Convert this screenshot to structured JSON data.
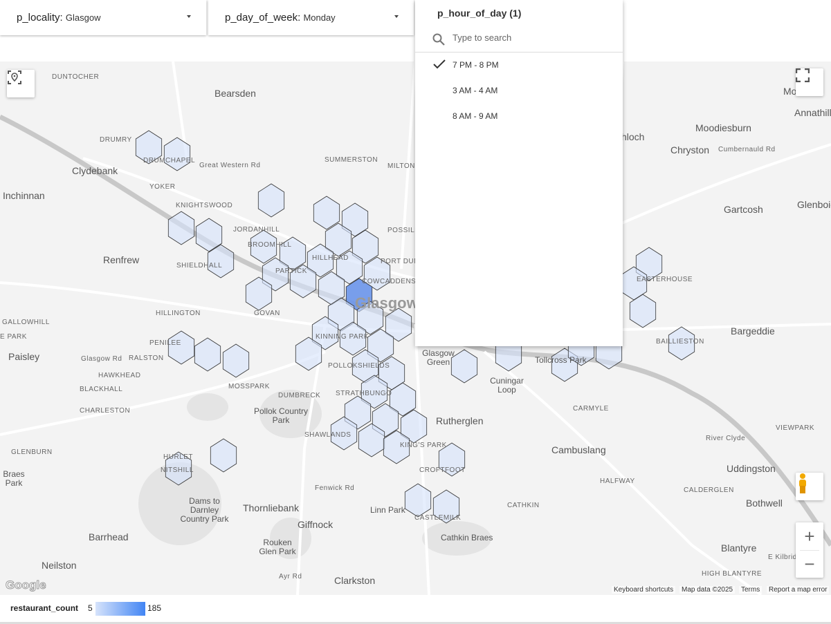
{
  "filters": [
    {
      "label": "p_locality",
      "value": "Glasgow"
    },
    {
      "label": "p_day_of_week",
      "value": "Monday"
    }
  ],
  "dropdown": {
    "title": "p_hour_of_day (1)",
    "search_placeholder": "Type to search",
    "options": [
      {
        "label": "7 PM - 8 PM",
        "selected": true
      },
      {
        "label": "3 AM - 4 AM",
        "selected": false
      },
      {
        "label": "8 AM - 9 AM",
        "selected": false
      }
    ]
  },
  "map": {
    "places": [
      "Bearsden",
      "Clydebank",
      "Inchinnan",
      "Renfrew",
      "Paisley",
      "Barrhead",
      "Neilston",
      "Clarkston",
      "Giffnock",
      "Thornliebank",
      "Rutherglen",
      "Cambuslang",
      "Uddingston",
      "Bothwell",
      "Blantyre",
      "Bargeddie",
      "Gartcosh",
      "Moodiesburn",
      "Chryston",
      "Glenboig",
      "Annathill",
      "Glasgow",
      "Linn Park",
      "Cathkin Braes",
      "Rouken Glen Park",
      "Pollok Country Park",
      "Dams to Darnley Country Park",
      "Braes Park",
      "Cuningar Loop",
      "Tollcross Park",
      "Glasgow Green",
      "Mo"
    ],
    "small_places": [
      "DUNTOCHER",
      "DRUMRY",
      "DRUMCHAPEL",
      "YOKER",
      "KNIGHTSWOOD",
      "JORDANHILL",
      "BROOMHILL",
      "SHIELDHALL",
      "HILLINGTON",
      "GALLOWHILL",
      "PENILEE",
      "RALSTON",
      "HAWKHEAD",
      "BLACKHALL",
      "CHARLESTON",
      "GLENBURN",
      "HURLET",
      "NITSHILL",
      "MOSSPARK",
      "DUMBRECK",
      "SHAWLANDS",
      "STRATHBUNGO",
      "POLLOKSHIELDS",
      "KINNING PARK",
      "GOVAN",
      "PARTICK",
      "HILLHEAD",
      "COWCADDENS",
      "PORT DUNDAS",
      "POSSILPARK",
      "MILTON",
      "SUMMERSTON",
      "KING'S PARK",
      "CROFTFOOT",
      "CASTLEMILK",
      "CATHKIN",
      "HALFWAY",
      "CARMYLE",
      "CALDERGLEN",
      "HIGH BLANTYRE",
      "VIEWPARK",
      "BAILLIESTON",
      "EASTERHOUSE",
      "E PARK",
      "Glasgow Rd",
      "Great Western Rd",
      "Fenwick Rd",
      "Ayr Rd",
      "Cumbernauld Rd",
      "E Kilbride Exp",
      "River Clyde",
      "hloch"
    ],
    "controls": {
      "locate": "locate-icon",
      "fullscreen": "fullscreen-icon",
      "pegman": "street-view-icon",
      "zoom_in": "+",
      "zoom_out": "−"
    },
    "logo": "Google",
    "attribution": [
      "Keyboard shortcuts",
      "Map data ©2025",
      "Terms",
      "Report a map error"
    ],
    "hex_color_low": "#d6e3fb",
    "hex_color_high": "#4285f4"
  },
  "legend": {
    "metric": "restaurant_count",
    "min": "5",
    "max": "185"
  }
}
